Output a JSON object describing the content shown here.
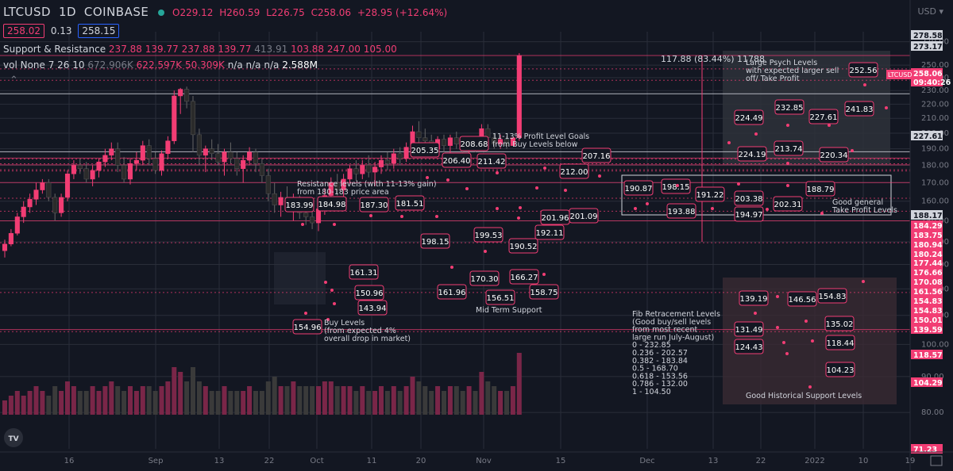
{
  "header": {
    "symbol": "LTCUSD",
    "interval": "1D",
    "exchange": "COINBASE",
    "ohlc": {
      "open": "O229.12",
      "high": "H260.59",
      "low": "L226.75",
      "close": "C258.06",
      "change": "+28.95 (+12.64%)"
    },
    "bid": "258.02",
    "spread": "0.13",
    "ask": "258.15",
    "currency": "USD"
  },
  "indicators": {
    "sr": {
      "name": "Support & Resistance",
      "values": [
        "237.88",
        "139.77",
        "237.88",
        "139.77"
      ],
      "muted": "413.91",
      "values2": [
        "103.88",
        "247.00",
        "105.00"
      ]
    },
    "vol": {
      "name": "vol None 7 26 10",
      "muted": "672.906K",
      "values": [
        "622.597K",
        "50.309K",
        "n/a",
        "n/a",
        "n/a"
      ],
      "last": "2.588M"
    }
  },
  "measure": "117.88 (83.44%) 11788",
  "price_labels": [
    "278.58",
    "273.17",
    "258.06",
    "09:40:26",
    "227.61",
    "188.17",
    "184.29",
    "183.75",
    "180.94",
    "180.24",
    "177.44",
    "176.66",
    "170.08",
    "161.56",
    "154.83",
    "154.83",
    "150.01",
    "139.59",
    "118.57",
    "104.29",
    "71.23"
  ],
  "ticker_tag": "LTCUSD",
  "annotations": {
    "psych": "Large Psych Levels\nwith expected larger sell\noff/ Take Profit",
    "resistance": "Resistance levels (with 11-13% gain)\nfrom 180-183 price area",
    "profit": "11-13%  Profit Level Goals\nfrom Buy Levels below",
    "buy": "Buy Levels\n(from expected 4%\noverall drop in market)",
    "mid": "Mid Term Support",
    "fib": "Fib Retracement Levels\n(Good buy/sell levels\nfrom most recent\nlarge run July-August)\n0       - 232.85\n0.236 - 202.57\n0.382 - 183.84\n0.5     - 168.70\n0.618 - 153.56\n0.786 - 132.00\n1        - 104.50",
    "good_tp": "Good general\nTake Profit Levels",
    "hist": "Good Historical Support Levels"
  },
  "chart_data": {
    "type": "candlestick",
    "y_axis": {
      "min": 71,
      "max": 279,
      "scale": "log",
      "ticks": [
        "270.00",
        "250.00",
        "240.00",
        "230.00",
        "220.00",
        "210.00",
        "200.00",
        "190.00",
        "180.00",
        "170.00",
        "160.00",
        "150.00",
        "140.00",
        "130.00",
        "120.00",
        "110.00",
        "100.00",
        "90.00",
        "80.00"
      ]
    },
    "x_ticks": [
      "16",
      "Sep",
      "13",
      "22",
      "Oct",
      "11",
      "20",
      "Nov",
      "15",
      "Dec",
      "13",
      "22",
      "2022",
      "10",
      "19"
    ],
    "grid": true,
    "candles": [
      [
        136,
        141,
        133,
        139
      ],
      [
        139,
        146,
        138,
        144
      ],
      [
        144,
        154,
        143,
        152
      ],
      [
        152,
        160,
        149,
        157
      ],
      [
        157,
        164,
        154,
        161
      ],
      [
        161,
        170,
        158,
        166
      ],
      [
        166,
        172,
        164,
        170
      ],
      [
        170,
        172,
        160,
        162
      ],
      [
        162,
        164,
        150,
        154
      ],
      [
        154,
        164,
        152,
        162
      ],
      [
        162,
        177,
        160,
        175
      ],
      [
        175,
        183,
        172,
        180
      ],
      [
        180,
        184,
        175,
        178
      ],
      [
        178,
        182,
        170,
        172
      ],
      [
        172,
        180,
        168,
        177
      ],
      [
        177,
        184,
        173,
        182
      ],
      [
        182,
        190,
        179,
        186
      ],
      [
        186,
        194,
        183,
        190
      ],
      [
        190,
        194,
        176,
        180
      ],
      [
        180,
        185,
        170,
        172
      ],
      [
        172,
        184,
        169,
        181
      ],
      [
        181,
        188,
        177,
        183
      ],
      [
        183,
        195,
        180,
        192
      ],
      [
        192,
        196,
        180,
        184
      ],
      [
        184,
        188,
        175,
        177
      ],
      [
        177,
        189,
        174,
        187
      ],
      [
        187,
        198,
        184,
        195
      ],
      [
        195,
        230,
        193,
        226
      ],
      [
        226,
        232,
        213,
        231
      ],
      [
        231,
        233,
        217,
        222
      ],
      [
        222,
        226,
        188,
        199
      ],
      [
        199,
        203,
        180,
        186
      ],
      [
        186,
        192,
        176,
        190
      ],
      [
        190,
        196,
        183,
        187
      ],
      [
        187,
        193,
        180,
        182
      ],
      [
        182,
        190,
        174,
        188
      ],
      [
        188,
        194,
        181,
        184
      ],
      [
        184,
        188,
        174,
        178
      ],
      [
        178,
        186,
        170,
        183
      ],
      [
        183,
        191,
        180,
        188
      ],
      [
        188,
        190,
        176,
        181
      ],
      [
        181,
        184,
        170,
        174
      ],
      [
        174,
        178,
        160,
        164
      ],
      [
        164,
        170,
        154,
        158
      ],
      [
        158,
        165,
        152,
        162
      ],
      [
        162,
        168,
        155,
        157
      ],
      [
        157,
        164,
        150,
        160
      ],
      [
        160,
        163,
        151,
        154
      ],
      [
        154,
        160,
        148,
        152
      ],
      [
        152,
        157,
        146,
        149
      ],
      [
        149,
        158,
        145,
        156
      ],
      [
        156,
        167,
        153,
        163
      ],
      [
        163,
        173,
        160,
        170
      ],
      [
        170,
        175,
        163,
        166
      ],
      [
        166,
        175,
        162,
        172
      ],
      [
        172,
        180,
        169,
        178
      ],
      [
        178,
        183,
        171,
        175
      ],
      [
        175,
        183,
        172,
        180
      ],
      [
        180,
        186,
        173,
        176
      ],
      [
        176,
        182,
        168,
        179
      ],
      [
        179,
        186,
        175,
        183
      ],
      [
        183,
        188,
        177,
        181
      ],
      [
        181,
        190,
        178,
        187
      ],
      [
        187,
        191,
        180,
        184
      ],
      [
        184,
        194,
        182,
        191
      ],
      [
        191,
        205,
        189,
        201
      ],
      [
        201,
        208,
        193,
        197
      ],
      [
        197,
        203,
        189,
        195
      ],
      [
        195,
        199,
        187,
        190
      ],
      [
        190,
        198,
        186,
        196
      ],
      [
        196,
        199,
        188,
        192
      ],
      [
        192,
        199,
        186,
        197
      ],
      [
        197,
        201,
        190,
        193
      ],
      [
        193,
        198,
        187,
        189
      ],
      [
        189,
        196,
        185,
        194
      ],
      [
        194,
        198,
        188,
        191
      ],
      [
        191,
        206,
        190,
        203
      ],
      [
        203,
        206,
        194,
        197
      ],
      [
        197,
        200,
        190,
        193
      ],
      [
        193,
        199,
        190,
        196
      ],
      [
        196,
        198,
        190,
        192
      ],
      [
        192,
        197,
        192,
        197
      ],
      [
        197,
        260,
        195,
        258
      ]
    ],
    "volume": [
      0.3,
      0.4,
      0.5,
      0.4,
      0.5,
      0.6,
      0.5,
      0.4,
      0.6,
      0.5,
      0.7,
      0.6,
      0.5,
      0.5,
      0.6,
      0.5,
      0.6,
      0.7,
      0.6,
      0.5,
      0.6,
      0.5,
      0.6,
      0.6,
      0.5,
      0.6,
      0.7,
      1.0,
      0.9,
      0.7,
      1.0,
      0.7,
      0.6,
      0.5,
      0.5,
      0.6,
      0.5,
      0.5,
      0.5,
      0.6,
      0.5,
      0.5,
      0.7,
      0.8,
      0.6,
      0.6,
      0.7,
      0.6,
      0.6,
      0.6,
      0.6,
      0.7,
      0.7,
      0.6,
      0.6,
      0.6,
      0.5,
      0.6,
      0.5,
      0.5,
      0.6,
      0.5,
      0.6,
      0.5,
      0.6,
      0.8,
      0.7,
      0.6,
      0.5,
      0.6,
      0.5,
      0.6,
      0.6,
      0.5,
      0.6,
      0.5,
      0.9,
      0.7,
      0.6,
      0.5,
      0.5,
      0.6,
      1.3
    ],
    "label_values": [
      "252.56",
      "232.85",
      "224.49",
      "227.61",
      "241.83",
      "224.19",
      "213.74",
      "220.34",
      "190.87",
      "198.15",
      "191.22",
      "203.38",
      "188.79",
      "193.88",
      "194.97",
      "202.31",
      "139.19",
      "146.56",
      "154.83",
      "131.49",
      "135.02",
      "124.43",
      "118.44",
      "104.23",
      "183.99",
      "184.98",
      "187.30",
      "181.51",
      "205.35",
      "206.40",
      "208.68",
      "211.42",
      "207.16",
      "212.00",
      "201.96",
      "201.09",
      "192.11",
      "198.15",
      "199.53",
      "190.52",
      "161.31",
      "150.96",
      "143.94",
      "154.96",
      "170.30",
      "166.27",
      "161.96",
      "156.51",
      "158.75"
    ]
  },
  "colors": {
    "bg": "#131722",
    "up": "#f23d74",
    "down": "#1e1e1e",
    "grid": "#2a2e39",
    "accent": "#f23d74"
  }
}
